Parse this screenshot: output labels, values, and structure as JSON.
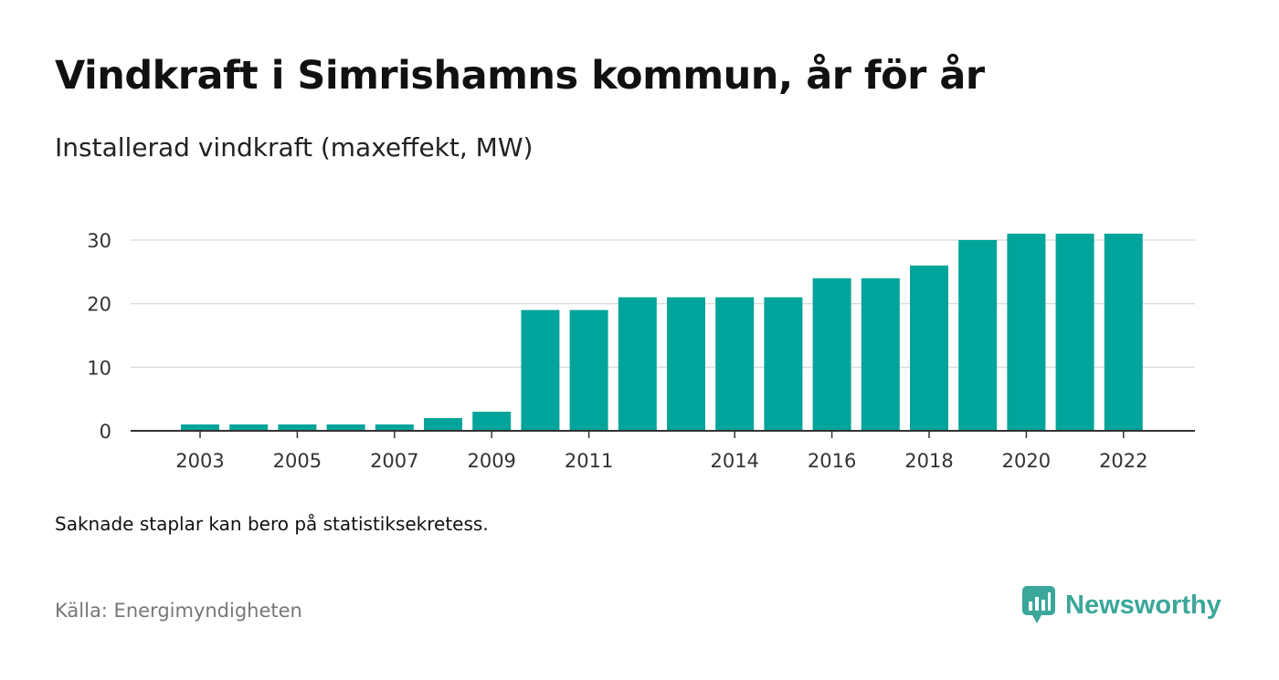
{
  "header": {
    "title": "Vindkraft i Simrishamns kommun, år för år",
    "subtitle": "Installerad vindkraft (maxeffekt, MW)"
  },
  "footer": {
    "note": "Saknade staplar kan bero på statistiksekretess.",
    "source": "Källa: Energimyndigheten",
    "brand": "Newsworthy",
    "brand_icon": "newsworthy-logo-icon"
  },
  "colors": {
    "bar": "#00a49a",
    "grid": "#dddddd",
    "axis": "#333333",
    "brand": "#3aa79a"
  },
  "chart_data": {
    "type": "bar",
    "x": [
      2003,
      2004,
      2005,
      2006,
      2007,
      2008,
      2009,
      2010,
      2011,
      2012,
      2013,
      2014,
      2015,
      2016,
      2017,
      2018,
      2019,
      2020,
      2021,
      2022
    ],
    "values": [
      1,
      1,
      1,
      1,
      1,
      2,
      3,
      19,
      19,
      21,
      21,
      21,
      21,
      24,
      24,
      26,
      30,
      31,
      31,
      31
    ],
    "x_tick_labels": [
      "2003",
      "2005",
      "2007",
      "2009",
      "2011",
      "2014",
      "2016",
      "2018",
      "2020",
      "2022"
    ],
    "y_ticks": [
      0,
      10,
      20,
      30
    ],
    "ylim": [
      0,
      30
    ],
    "grid": true,
    "legend": "none"
  }
}
